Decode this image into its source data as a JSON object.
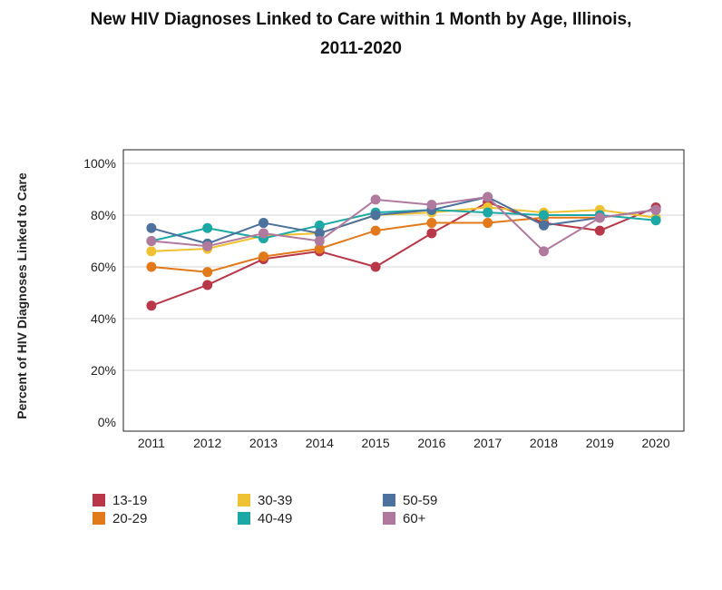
{
  "title_line1": "New HIV Diagnoses Linked to Care within 1 Month by Age, Illinois,",
  "title_line2": "2011-2020",
  "chart_data": {
    "type": "line",
    "title": "New HIV Diagnoses Linked to Care within 1 Month by Age, Illinois, 2011-2020",
    "xlabel": "",
    "ylabel": "Percent of HIV Diagnoses Linked to Care",
    "categories": [
      "2011",
      "2012",
      "2013",
      "2014",
      "2015",
      "2016",
      "2017",
      "2018",
      "2019",
      "2020"
    ],
    "yticks": [
      "0%",
      "20%",
      "40%",
      "60%",
      "80%",
      "100%"
    ],
    "ylim": [
      0,
      100
    ],
    "grid": true,
    "legend_position": "bottom",
    "series": [
      {
        "name": "13-19",
        "color": "#b8384a",
        "values": [
          45,
          53,
          63,
          66,
          60,
          73,
          85,
          77,
          74,
          83
        ]
      },
      {
        "name": "20-29",
        "color": "#e2791b",
        "values": [
          60,
          58,
          64,
          67,
          74,
          77,
          77,
          79,
          79,
          82
        ]
      },
      {
        "name": "30-39",
        "color": "#eec232",
        "values": [
          66,
          67,
          72,
          73,
          80,
          81,
          83,
          81,
          82,
          79
        ]
      },
      {
        "name": "40-49",
        "color": "#1ca9a5",
        "values": [
          70,
          75,
          71,
          76,
          81,
          82,
          81,
          80,
          80,
          78
        ]
      },
      {
        "name": "50-59",
        "color": "#4d729d",
        "values": [
          75,
          69,
          77,
          73,
          80,
          82,
          87,
          76,
          79,
          82
        ]
      },
      {
        "name": "60+",
        "color": "#b07a9e",
        "values": [
          70,
          68,
          73,
          70,
          86,
          84,
          87,
          66,
          79,
          82
        ]
      }
    ]
  }
}
